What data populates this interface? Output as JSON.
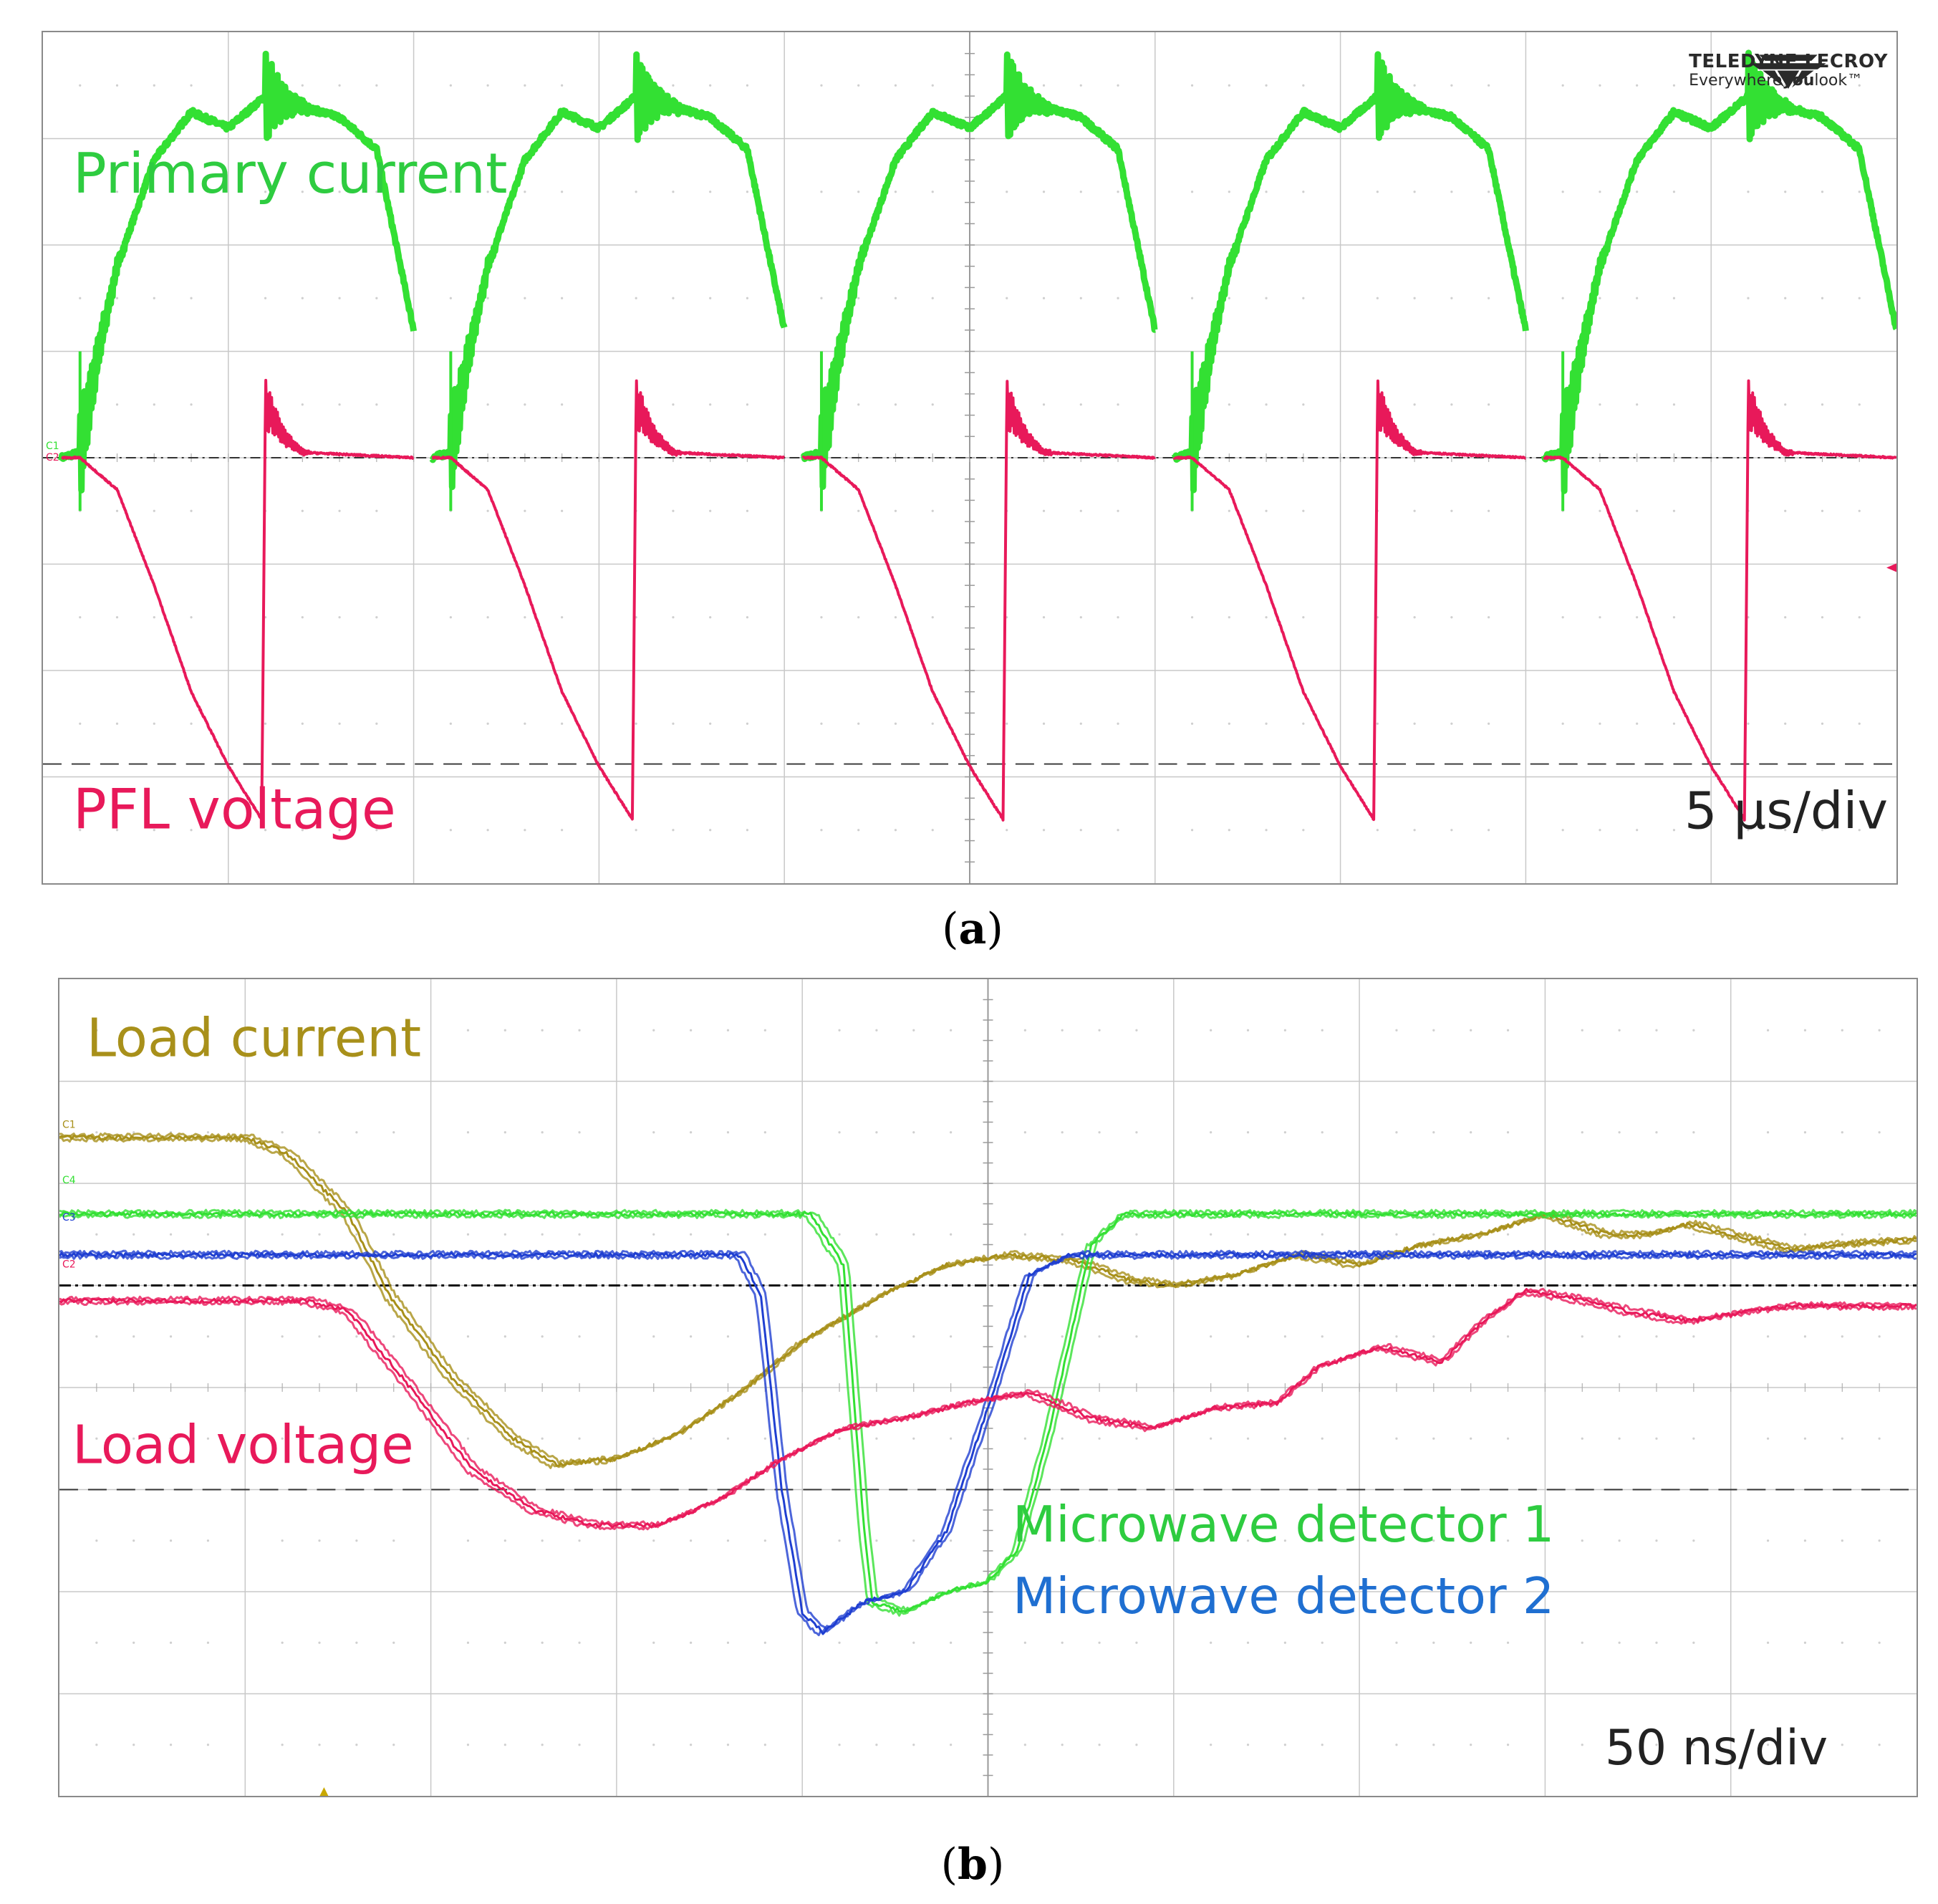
{
  "panels": {
    "a": {
      "caption_letter": "a",
      "timebase": "5 µs/div",
      "logo": {
        "name": "TELEDYNE LECROY",
        "tagline_prefix": "Everywhere",
        "tagline_bold": "you",
        "tagline_suffix": "look",
        "trademark": "™"
      },
      "channel_tags": [
        "C1",
        "C2"
      ],
      "trace_labels": [
        {
          "text": "Primary current",
          "color": "#2ecc40"
        },
        {
          "text": "PFL voltage",
          "color": "#e8195a"
        }
      ]
    },
    "b": {
      "caption_letter": "b",
      "timebase": "50 ns/div",
      "channel_tags": [
        "C1",
        "C4",
        "C3",
        "C2"
      ],
      "trace_labels": [
        {
          "text": "Load current",
          "color": "#a8901a"
        },
        {
          "text": "Load voltage",
          "color": "#e8195a"
        },
        {
          "text": "Microwave detector 1",
          "color": "#2ecc40"
        },
        {
          "text": "Microwave detector 2",
          "color": "#1f6fd1"
        }
      ]
    }
  },
  "chart_data": [
    {
      "type": "line",
      "title": "(a)",
      "x_unit": "µs",
      "x_div": 5,
      "xlim": [
        0,
        50
      ],
      "ylim": [
        -4,
        4
      ],
      "grid": true,
      "series": [
        {
          "name": "Primary current",
          "color": "#33e033",
          "period_us": 10,
          "pulse_count": 5,
          "pulse_start_us": 1,
          "pulse_shape": [
            [
              -0.5,
              0
            ],
            [
              0,
              0.05
            ],
            [
              0.5,
              1.0
            ],
            [
              1.0,
              1.8
            ],
            [
              2.0,
              2.8
            ],
            [
              3.0,
              3.25
            ],
            [
              4.0,
              3.1
            ],
            [
              5.0,
              3.4
            ],
            [
              6.0,
              3.3
            ],
            [
              7.0,
              3.2
            ],
            [
              8.0,
              2.9
            ],
            [
              9.0,
              1.2
            ]
          ],
          "ringing_at_us": [
            0,
            5
          ]
        },
        {
          "name": "PFL voltage",
          "color": "#e8195a",
          "period_us": 10,
          "pulse_count": 5,
          "pulse_start_us": 1,
          "pulse_shape": [
            [
              -0.5,
              0
            ],
            [
              0,
              0
            ],
            [
              1.0,
              -0.3
            ],
            [
              2.0,
              -1.2
            ],
            [
              3.0,
              -2.2
            ],
            [
              4.0,
              -2.9
            ],
            [
              4.9,
              -3.4
            ],
            [
              5.0,
              0.5
            ],
            [
              5.5,
              0.2
            ],
            [
              6.0,
              0.05
            ],
            [
              9.0,
              0
            ]
          ],
          "ringing_at_us": [
            5
          ]
        }
      ]
    },
    {
      "type": "line",
      "title": "(b)",
      "x_unit": "ns",
      "x_div": 50,
      "xlim": [
        0,
        450
      ],
      "ylim": [
        -4,
        4
      ],
      "grid": true,
      "series": [
        {
          "name": "Load current",
          "color": "#a8901a",
          "points": [
            [
              0,
              2.45
            ],
            [
              45,
              2.45
            ],
            [
              55,
              2.3
            ],
            [
              70,
              1.7
            ],
            [
              80,
              0.9
            ],
            [
              95,
              0.1
            ],
            [
              110,
              -0.5
            ],
            [
              120,
              -0.75
            ],
            [
              135,
              -0.7
            ],
            [
              150,
              -0.45
            ],
            [
              165,
              -0.05
            ],
            [
              180,
              0.45
            ],
            [
              200,
              0.92
            ],
            [
              215,
              1.2
            ],
            [
              230,
              1.3
            ],
            [
              245,
              1.25
            ],
            [
              260,
              1.05
            ],
            [
              270,
              1.0
            ],
            [
              285,
              1.1
            ],
            [
              300,
              1.3
            ],
            [
              315,
              1.2
            ],
            [
              330,
              1.4
            ],
            [
              345,
              1.5
            ],
            [
              360,
              1.7
            ],
            [
              375,
              1.5
            ],
            [
              385,
              1.5
            ],
            [
              395,
              1.6
            ],
            [
              405,
              1.5
            ],
            [
              420,
              1.35
            ],
            [
              430,
              1.4
            ],
            [
              450,
              1.45
            ]
          ]
        },
        {
          "name": "Microwave detector 1",
          "color": "#33e033",
          "points": [
            [
              0,
              1.7
            ],
            [
              182,
              1.7
            ],
            [
              190,
              1.2
            ],
            [
              195,
              -1.4
            ],
            [
              197,
              -2.1
            ],
            [
              205,
              -2.2
            ],
            [
              215,
              -2.0
            ],
            [
              225,
              -1.9
            ],
            [
              232,
              -1.6
            ],
            [
              240,
              -0.4
            ],
            [
              250,
              1.4
            ],
            [
              258,
              1.7
            ],
            [
              450,
              1.7
            ]
          ]
        },
        {
          "name": "Microwave detector 2",
          "color": "#1f3fd1",
          "points": [
            [
              0,
              1.3
            ],
            [
              165,
              1.3
            ],
            [
              170,
              0.9
            ],
            [
              175,
              -1.0
            ],
            [
              180,
              -2.2
            ],
            [
              185,
              -2.4
            ],
            [
              195,
              -2.1
            ],
            [
              205,
              -2.0
            ],
            [
              215,
              -1.4
            ],
            [
              225,
              -0.2
            ],
            [
              235,
              1.1
            ],
            [
              245,
              1.3
            ],
            [
              450,
              1.3
            ]
          ]
        },
        {
          "name": "Load voltage",
          "color": "#e8195a",
          "points": [
            [
              0,
              0.85
            ],
            [
              60,
              0.85
            ],
            [
              70,
              0.75
            ],
            [
              85,
              0.0
            ],
            [
              100,
              -0.8
            ],
            [
              115,
              -1.2
            ],
            [
              130,
              -1.35
            ],
            [
              145,
              -1.35
            ],
            [
              160,
              -1.1
            ],
            [
              175,
              -0.7
            ],
            [
              190,
              -0.4
            ],
            [
              205,
              -0.3
            ],
            [
              220,
              -0.15
            ],
            [
              235,
              -0.05
            ],
            [
              250,
              -0.3
            ],
            [
              265,
              -0.4
            ],
            [
              280,
              -0.2
            ],
            [
              295,
              -0.15
            ],
            [
              305,
              0.2
            ],
            [
              320,
              0.4
            ],
            [
              335,
              0.25
            ],
            [
              345,
              0.65
            ],
            [
              355,
              0.95
            ],
            [
              370,
              0.85
            ],
            [
              380,
              0.75
            ],
            [
              395,
              0.65
            ],
            [
              410,
              0.75
            ],
            [
              420,
              0.8
            ],
            [
              435,
              0.8
            ],
            [
              450,
              0.8
            ]
          ]
        }
      ]
    }
  ]
}
